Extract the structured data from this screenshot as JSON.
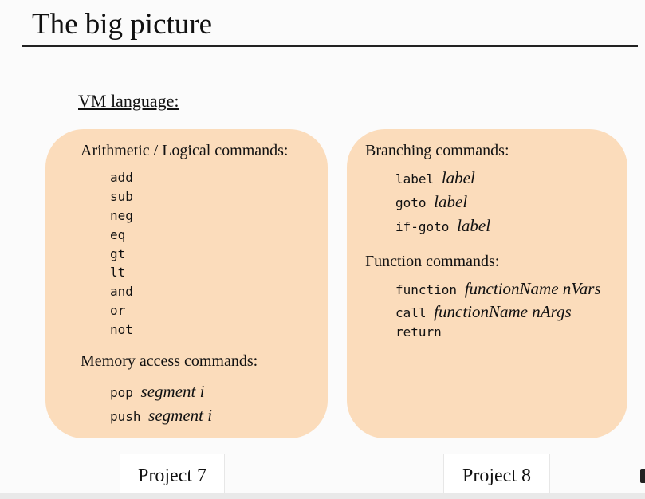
{
  "slide": {
    "title": "The big picture",
    "subtitle": "VM language:"
  },
  "left_panel": {
    "arith_heading": "Arithmetic / Logical commands:",
    "arith_commands": [
      "add",
      "sub",
      "neg",
      "eq",
      "gt",
      "lt",
      "and",
      "or",
      "not"
    ],
    "memory_heading": "Memory access commands:",
    "memory_commands": [
      {
        "cmd": "pop",
        "args": "segment i"
      },
      {
        "cmd": "push",
        "args": "segment i"
      }
    ]
  },
  "right_panel": {
    "branch_heading": "Branching commands:",
    "branch_commands": [
      {
        "cmd": "label",
        "args": "label"
      },
      {
        "cmd": "goto",
        "args": "label"
      },
      {
        "cmd": "if-goto",
        "args": "label"
      }
    ],
    "function_heading": "Function commands:",
    "function_commands": [
      {
        "cmd": "function",
        "args": "functionName nVars"
      },
      {
        "cmd": "call",
        "args": "functionName nArgs"
      },
      {
        "cmd": "return",
        "args": ""
      }
    ]
  },
  "projects": {
    "left": "Project 7",
    "right": "Project 8"
  },
  "colors": {
    "panel_fill": "#fbdcbb",
    "background": "#fbfbfb"
  }
}
